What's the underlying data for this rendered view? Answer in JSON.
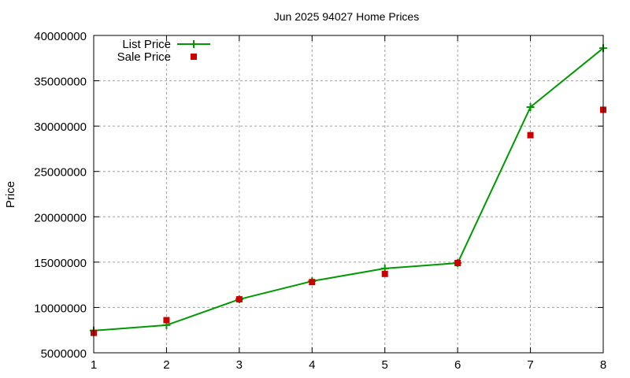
{
  "chart_data": {
    "type": "line",
    "title": "Jun 2025 94027 Home Prices",
    "xlabel": "",
    "ylabel": "Price",
    "x": [
      1,
      2,
      3,
      4,
      5,
      6,
      7,
      8
    ],
    "xlim": [
      1,
      8
    ],
    "ylim": [
      5000000,
      40000000
    ],
    "xticks": [
      "1",
      "2",
      "3",
      "4",
      "5",
      "6",
      "7",
      "8"
    ],
    "yticks": [
      "5000000",
      "10000000",
      "15000000",
      "20000000",
      "25000000",
      "30000000",
      "35000000",
      "40000000"
    ],
    "grid": true,
    "legend_position": "top-left",
    "series": [
      {
        "name": "List Price",
        "style": "linespoints",
        "marker": "plus",
        "color": "#009900",
        "values": [
          7450000,
          8050000,
          10900000,
          12900000,
          14300000,
          14900000,
          32100000,
          38600000
        ]
      },
      {
        "name": "Sale Price",
        "style": "points",
        "marker": "square",
        "color": "#cc0000",
        "values": [
          7200000,
          8600000,
          10900000,
          12800000,
          13700000,
          14900000,
          29000000,
          31800000
        ]
      }
    ]
  }
}
